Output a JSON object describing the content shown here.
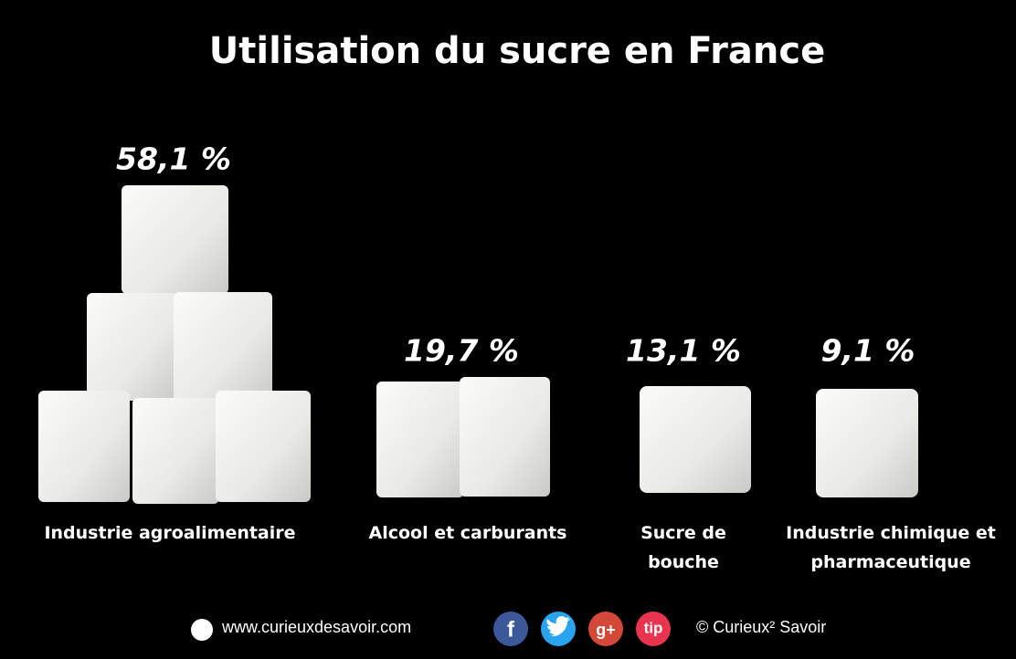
{
  "chart_data": {
    "type": "pictograph",
    "title": "Utilisation du sucre en France",
    "categories": [
      "Industrie agroalimentaire",
      "Alcool et carburants",
      "Sucre de bouche",
      "Industrie chimique et pharmaceutique"
    ],
    "values": [
      58.1,
      19.7,
      13.1,
      9.1
    ],
    "value_labels": [
      "58,1 %",
      "19,7 %",
      "13,1 %",
      "9,1 %"
    ],
    "color": "#efefed"
  },
  "footer": {
    "website": "www.curieuxdesavoir.com",
    "icons": [
      "f",
      "g+",
      "tip"
    ],
    "copyright": "© Curieux² Savoir"
  }
}
